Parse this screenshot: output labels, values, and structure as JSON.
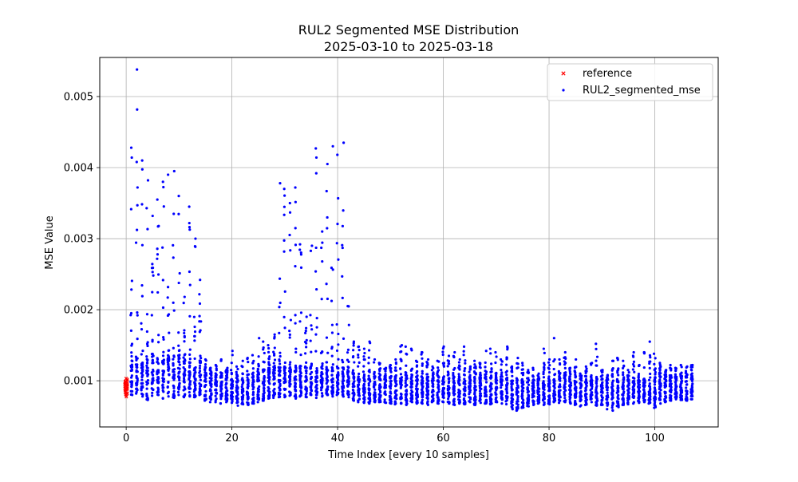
{
  "chart_data": {
    "type": "scatter",
    "title": "RUL2 Segmented MSE Distribution",
    "subtitle": "2025-03-10 to 2025-03-18",
    "xlabel": "Time Index [every 10 samples]",
    "ylabel": "MSE Value",
    "xlim": [
      -5,
      112
    ],
    "ylim": [
      0.00035,
      0.00555
    ],
    "xticks": [
      0,
      20,
      40,
      60,
      80,
      100
    ],
    "yticks": [
      0.001,
      0.002,
      0.003,
      0.004,
      0.005
    ],
    "ytick_labels": [
      "0.001",
      "0.002",
      "0.003",
      "0.004",
      "0.005"
    ],
    "grid": true,
    "legend": "top-right",
    "series": [
      {
        "name": "reference",
        "marker": "x",
        "color": "#ff0000",
        "points_per_index": 40,
        "x": [
          0
        ],
        "y_min": [
          0.00077
        ],
        "y_max": [
          0.00104
        ]
      },
      {
        "name": "RUL2_segmented_mse",
        "marker": "o",
        "color": "#0000ff",
        "points_per_index": 40,
        "x": [
          1,
          2,
          3,
          4,
          5,
          6,
          7,
          8,
          9,
          10,
          11,
          12,
          13,
          14,
          15,
          16,
          17,
          18,
          19,
          20,
          21,
          22,
          23,
          24,
          25,
          26,
          27,
          28,
          29,
          30,
          31,
          32,
          33,
          34,
          35,
          36,
          37,
          38,
          39,
          40,
          41,
          42,
          43,
          44,
          45,
          46,
          47,
          48,
          49,
          50,
          51,
          52,
          53,
          54,
          55,
          56,
          57,
          58,
          59,
          60,
          61,
          62,
          63,
          64,
          65,
          66,
          67,
          68,
          69,
          70,
          71,
          72,
          73,
          74,
          75,
          76,
          77,
          78,
          79,
          80,
          81,
          82,
          83,
          84,
          85,
          86,
          87,
          88,
          89,
          90,
          91,
          92,
          93,
          94,
          95,
          96,
          97,
          98,
          99,
          100,
          101,
          102,
          103,
          104,
          105,
          106,
          107
        ],
        "y_min": [
          0.0008,
          0.00082,
          0.00078,
          0.00073,
          0.00079,
          0.0008,
          0.00075,
          0.00078,
          0.00076,
          0.0008,
          0.00077,
          0.00078,
          0.00077,
          0.0008,
          0.00072,
          0.0007,
          0.0007,
          0.00068,
          0.0007,
          0.00069,
          0.00065,
          0.00067,
          0.00066,
          0.00068,
          0.0007,
          0.00072,
          0.00075,
          0.00076,
          0.00077,
          0.00077,
          0.00079,
          0.00075,
          0.00078,
          0.00077,
          0.0008,
          0.00076,
          0.00078,
          0.0008,
          0.00078,
          0.0008,
          0.00078,
          0.00077,
          0.00072,
          0.0007,
          0.00069,
          0.00068,
          0.0007,
          0.0007,
          0.00069,
          0.00068,
          0.00067,
          0.00068,
          0.00066,
          0.0007,
          0.00068,
          0.00068,
          0.00066,
          0.0007,
          0.00068,
          0.0007,
          0.00068,
          0.00066,
          0.00068,
          0.00067,
          0.0007,
          0.00066,
          0.00069,
          0.00068,
          0.00067,
          0.0007,
          0.00068,
          0.00067,
          0.0006,
          0.00058,
          0.00062,
          0.00064,
          0.00066,
          0.00068,
          0.00066,
          0.00067,
          0.0007,
          0.00069,
          0.0007,
          0.00068,
          0.00066,
          0.00064,
          0.00066,
          0.0007,
          0.00065,
          0.00066,
          0.0006,
          0.00058,
          0.00063,
          0.00066,
          0.00067,
          0.00068,
          0.00069,
          0.0007,
          0.00068,
          0.00062,
          0.00068,
          0.0007,
          0.00072,
          0.00074,
          0.00073,
          0.00072,
          0.00074
        ],
        "y_core": [
          0.0014,
          0.00135,
          0.00135,
          0.0013,
          0.0014,
          0.00135,
          0.0013,
          0.00135,
          0.0013,
          0.00135,
          0.0013,
          0.0013,
          0.0012,
          0.0013,
          0.00115,
          0.0011,
          0.00105,
          0.00105,
          0.00105,
          0.001,
          0.001,
          0.001,
          0.001,
          0.00105,
          0.0011,
          0.00115,
          0.0012,
          0.0012,
          0.0012,
          0.0012,
          0.0012,
          0.0012,
          0.0012,
          0.0012,
          0.0012,
          0.0012,
          0.0012,
          0.0012,
          0.0012,
          0.0012,
          0.0012,
          0.00115,
          0.0011,
          0.00105,
          0.00105,
          0.00105,
          0.00105,
          0.00105,
          0.00105,
          0.00105,
          0.00105,
          0.00105,
          0.00105,
          0.00105,
          0.00105,
          0.00105,
          0.00105,
          0.00105,
          0.00105,
          0.00105,
          0.00105,
          0.00105,
          0.00105,
          0.00105,
          0.00105,
          0.00105,
          0.00105,
          0.00105,
          0.00105,
          0.00105,
          0.00105,
          0.00105,
          0.001,
          0.001,
          0.001,
          0.001,
          0.001,
          0.001,
          0.001,
          0.001,
          0.001,
          0.00105,
          0.0011,
          0.00105,
          0.00105,
          0.001,
          0.001,
          0.001,
          0.001,
          0.001,
          0.001,
          0.001,
          0.001,
          0.001,
          0.001,
          0.001,
          0.001,
          0.001,
          0.001,
          0.00105,
          0.0011,
          0.00105,
          0.00105,
          0.00105,
          0.00105,
          0.00105,
          0.00105
        ],
        "y_max": [
          0.00428,
          0.00538,
          0.0041,
          0.00382,
          0.00332,
          0.00355,
          0.0038,
          0.0039,
          0.00395,
          0.0036,
          0.00218,
          0.00345,
          0.003,
          0.00242,
          0.0013,
          0.00118,
          0.00122,
          0.0013,
          0.00118,
          0.00142,
          0.0012,
          0.00128,
          0.00132,
          0.00136,
          0.0016,
          0.00155,
          0.0015,
          0.00165,
          0.00378,
          0.0037,
          0.0035,
          0.00372,
          0.00292,
          0.0019,
          0.0029,
          0.00427,
          0.0031,
          0.00405,
          0.0043,
          0.00418,
          0.00435,
          0.00205,
          0.00155,
          0.00148,
          0.00145,
          0.00155,
          0.0013,
          0.00125,
          0.00118,
          0.00122,
          0.0013,
          0.0015,
          0.00148,
          0.00145,
          0.00128,
          0.0014,
          0.0013,
          0.0012,
          0.00128,
          0.00148,
          0.00135,
          0.0014,
          0.0013,
          0.00148,
          0.0012,
          0.00128,
          0.00125,
          0.00142,
          0.00145,
          0.0014,
          0.0013,
          0.00148,
          0.0012,
          0.00132,
          0.00125,
          0.00115,
          0.00118,
          0.0011,
          0.00145,
          0.0013,
          0.0016,
          0.0013,
          0.0014,
          0.00118,
          0.0013,
          0.0011,
          0.0012,
          0.00125,
          0.00152,
          0.00115,
          0.00108,
          0.00128,
          0.00132,
          0.00128,
          0.00115,
          0.0014,
          0.00122,
          0.0014,
          0.00155,
          0.00138,
          0.00125,
          0.00115,
          0.00122,
          0.00118,
          0.00122,
          0.0012,
          0.00122
        ]
      }
    ]
  }
}
